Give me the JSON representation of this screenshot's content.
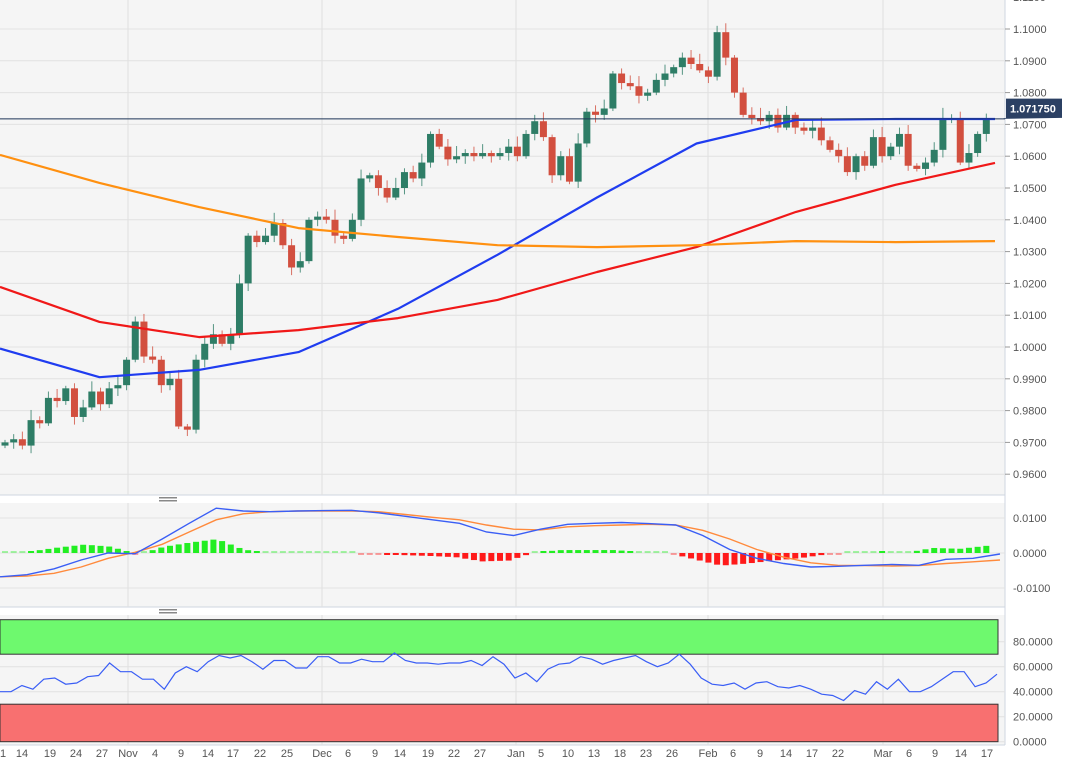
{
  "chart_data": [
    {
      "type": "candlestick",
      "title": "",
      "ylim": [
        0.955,
        1.11
      ],
      "y_ticks": [
        "1.1100",
        "1.1000",
        "1.0900",
        "1.0800",
        "1.0700",
        "1.0600",
        "1.0500",
        "1.0400",
        "1.0300",
        "1.0200",
        "1.0100",
        "1.0000",
        "0.9900",
        "0.9800",
        "0.9700",
        "0.9600"
      ],
      "y_tick_values": [
        1.11,
        1.1,
        1.09,
        1.08,
        1.07,
        1.06,
        1.05,
        1.04,
        1.03,
        1.02,
        1.01,
        1.0,
        0.99,
        0.98,
        0.97,
        0.96
      ],
      "last_price": 1.07175,
      "last_price_label": "1.071750",
      "closes": [
        0.97,
        0.971,
        0.969,
        0.977,
        0.976,
        0.984,
        0.983,
        0.987,
        0.978,
        0.981,
        0.986,
        0.982,
        0.987,
        0.988,
        0.996,
        1.008,
        0.997,
        0.996,
        0.988,
        0.99,
        0.975,
        0.974,
        0.996,
        1.001,
        1.004,
        1.001,
        1.004,
        1.02,
        1.035,
        1.033,
        1.035,
        1.039,
        1.032,
        1.025,
        1.027,
        1.04,
        1.041,
        1.04,
        1.035,
        1.034,
        1.04,
        1.053,
        1.054,
        1.05,
        1.047,
        1.05,
        1.055,
        1.053,
        1.058,
        1.067,
        1.063,
        1.059,
        1.06,
        1.061,
        1.06,
        1.061,
        1.06,
        1.061,
        1.063,
        1.06,
        1.067,
        1.071,
        1.066,
        1.054,
        1.06,
        1.052,
        1.064,
        1.074,
        1.073,
        1.075,
        1.086,
        1.083,
        1.082,
        1.079,
        1.08,
        1.084,
        1.086,
        1.088,
        1.091,
        1.089,
        1.087,
        1.085,
        1.099,
        1.091,
        1.08,
        1.073,
        1.072,
        1.071,
        1.073,
        1.069,
        1.073,
        1.069,
        1.068,
        1.069,
        1.065,
        1.062,
        1.06,
        1.055,
        1.06,
        1.057,
        1.066,
        1.06,
        1.063,
        1.067,
        1.057,
        1.056,
        1.058,
        1.062,
        1.072,
        1.072,
        1.058,
        1.061,
        1.067,
        1.0718
      ],
      "moving_averages": [
        {
          "name": "ma-blue",
          "color": "#1f3cf0",
          "values": [
            0.9995,
            0.9905,
            0.9928,
            0.9984,
            1.012,
            1.029,
            1.047,
            1.064,
            1.0714,
            1.0717,
            1.0717
          ]
        },
        {
          "name": "ma-red",
          "color": "#f01818",
          "values": [
            1.0189,
            1.0079,
            1.0031,
            1.0053,
            1.0091,
            1.0148,
            1.0236,
            1.0314,
            1.0425,
            1.051,
            1.0579
          ]
        },
        {
          "name": "ma-orange",
          "color": "#ff9010",
          "values": [
            1.0604,
            1.0516,
            1.044,
            1.0374,
            1.0346,
            1.032,
            1.0314,
            1.032,
            1.0333,
            1.033,
            1.0333
          ]
        }
      ],
      "colors": {
        "up": "#2e7d66",
        "down": "#d24f3f",
        "last_line": "#1d3557",
        "tag_bg": "#2b4063"
      }
    },
    {
      "type": "macd",
      "ylim": [
        -0.015,
        0.013
      ],
      "y_ticks": [
        "0.0100",
        "0.0000",
        "-0.0100"
      ],
      "y_tick_values": [
        0.01,
        0,
        -0.01
      ],
      "macd": [
        -0.0068,
        -0.0062,
        -0.0045,
        -0.002,
        0.0,
        -0.0002,
        0.004,
        0.0085,
        0.0128,
        0.012,
        0.0118,
        0.012,
        0.0121,
        0.0122,
        0.0115,
        0.0105,
        0.0095,
        0.0085,
        0.006,
        0.005,
        0.0068,
        0.0082,
        0.0085,
        0.0087,
        0.0084,
        0.008,
        0.005,
        0.001,
        -0.0015,
        -0.003,
        -0.004,
        -0.0038,
        -0.0035,
        -0.0033,
        -0.0035,
        -0.0018,
        -0.0015,
        -0.0003
      ],
      "signal": [
        -0.0068,
        -0.0066,
        -0.0058,
        -0.004,
        -0.0015,
        0.0002,
        0.0025,
        0.006,
        0.0095,
        0.0112,
        0.0118,
        0.012,
        0.012,
        0.012,
        0.0118,
        0.011,
        0.0102,
        0.0095,
        0.008,
        0.0068,
        0.0066,
        0.0075,
        0.0078,
        0.008,
        0.0082,
        0.008,
        0.0065,
        0.004,
        0.001,
        -0.0012,
        -0.0028,
        -0.0035,
        -0.0036,
        -0.0037,
        -0.0036,
        -0.003,
        -0.0025,
        -0.002
      ],
      "colors": {
        "macd": "#3a5ef5",
        "signal": "#ff8a3c",
        "hist_up": "#22ee22",
        "hist_down": "#ff1a1a"
      }
    },
    {
      "type": "rsi",
      "ylim": [
        0,
        100
      ],
      "y_ticks": [
        "80.0000",
        "60.0000",
        "40.0000",
        "20.0000",
        "0.0000"
      ],
      "y_tick_values": [
        80,
        60,
        40,
        20,
        0
      ],
      "overbought": 70,
      "oversold": 30,
      "values": [
        40,
        40,
        45,
        42,
        50,
        51,
        46,
        47,
        52,
        53,
        63,
        56,
        56,
        50,
        50,
        42,
        55,
        60,
        56,
        64,
        69,
        67,
        69,
        64,
        58,
        65,
        65,
        59,
        59,
        68,
        68,
        63,
        63,
        66,
        64,
        64,
        71,
        65,
        63,
        63,
        62,
        63,
        63,
        65,
        61,
        68,
        62,
        51,
        55,
        48,
        58,
        62,
        63,
        68,
        66,
        62,
        65,
        67,
        69,
        64,
        60,
        63,
        70,
        62,
        51,
        46,
        45,
        47,
        42,
        47,
        48,
        44,
        43,
        45,
        42,
        38,
        37,
        33,
        41,
        38,
        48,
        42,
        50,
        40,
        40,
        44,
        50,
        56,
        56,
        44,
        47,
        54
      ],
      "colors": {
        "line": "#3a5ef5",
        "overbought_zone": "#6ef96e",
        "oversold_zone": "#f87070"
      }
    }
  ],
  "x_axis": {
    "labels": [
      "1",
      "14",
      "19",
      "24",
      "27",
      "Nov",
      "4",
      "9",
      "14",
      "17",
      "22",
      "25",
      "Dec",
      "6",
      "9",
      "14",
      "19",
      "22",
      "27",
      "Jan",
      "5",
      "10",
      "13",
      "18",
      "23",
      "26",
      "Feb",
      "6",
      "9",
      "14",
      "17",
      "22",
      "Mar",
      "6",
      "9",
      "14",
      "17"
    ]
  }
}
